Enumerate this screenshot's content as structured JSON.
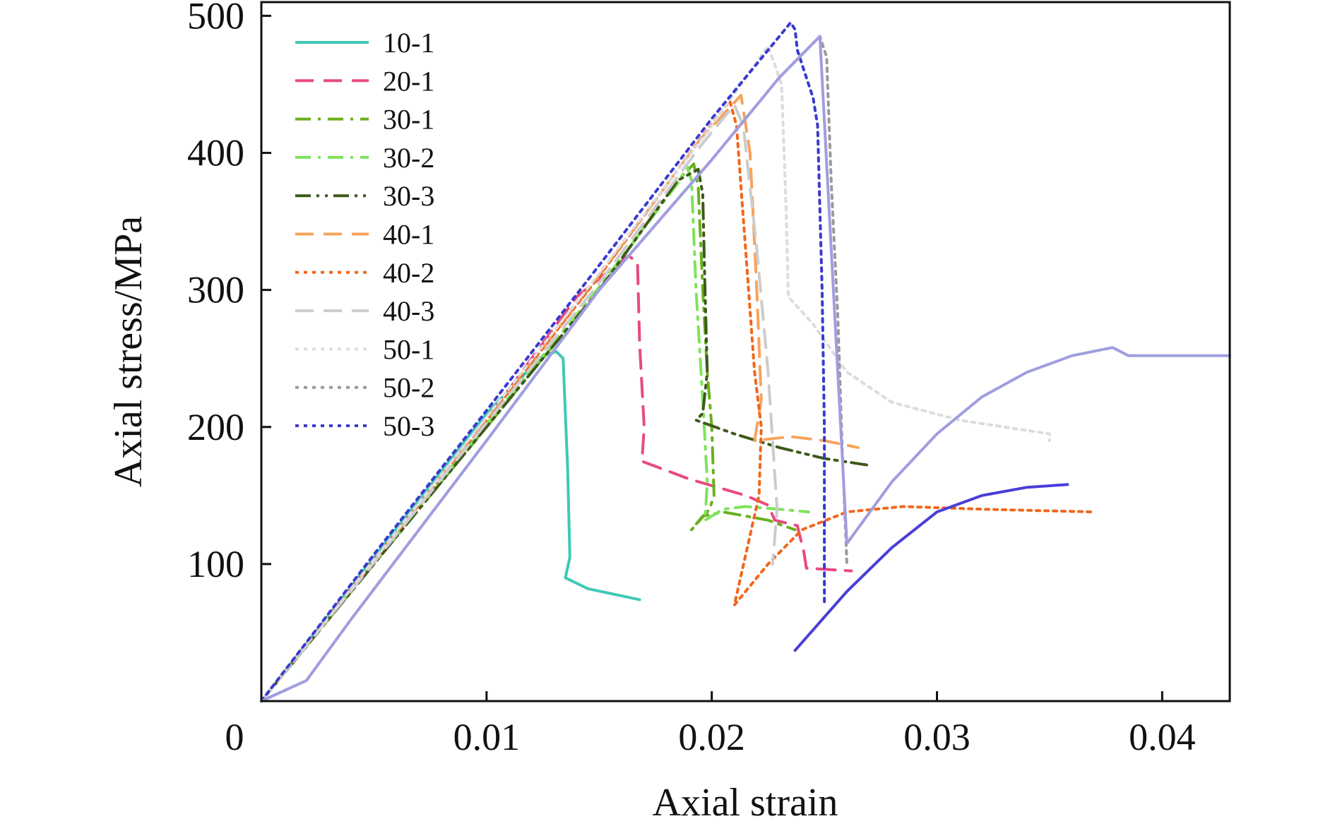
{
  "chart_data": {
    "type": "line",
    "title": "",
    "xlabel": "Axial strain",
    "ylabel": "Axial stress/MPa",
    "xlim": [
      0,
      0.043
    ],
    "ylim": [
      0,
      510
    ],
    "x_ticks": [
      0,
      0.01,
      0.02,
      0.03,
      0.04
    ],
    "x_tick_labels": [
      "0",
      "0.01",
      "0.02",
      "0.03",
      "0.04"
    ],
    "y_ticks": [
      100,
      200,
      300,
      400,
      500
    ],
    "y_tick_labels": [
      "100",
      "200",
      "300",
      "400",
      "500"
    ],
    "grid": false,
    "legend_position": "top-left",
    "series": [
      {
        "name": "10-1",
        "color": "#3fc9b4",
        "dash": "solid",
        "points": [
          [
            0,
            0
          ],
          [
            0.005,
            105
          ],
          [
            0.01,
            210
          ],
          [
            0.0125,
            252
          ],
          [
            0.0131,
            255
          ],
          [
            0.0134,
            250
          ],
          [
            0.0136,
            170
          ],
          [
            0.0137,
            105
          ],
          [
            0.0135,
            90
          ],
          [
            0.0145,
            82
          ],
          [
            0.0168,
            74
          ]
        ]
      },
      {
        "name": "20-1",
        "color": "#e84a7f",
        "dash": "dashed",
        "points": [
          [
            0,
            0
          ],
          [
            0.005,
            103
          ],
          [
            0.01,
            205
          ],
          [
            0.014,
            295
          ],
          [
            0.0163,
            325
          ],
          [
            0.0167,
            320
          ],
          [
            0.0168,
            260
          ],
          [
            0.017,
            200
          ],
          [
            0.0169,
            175
          ],
          [
            0.019,
            162
          ],
          [
            0.0215,
            150
          ],
          [
            0.0225,
            143
          ],
          [
            0.0228,
            132
          ],
          [
            0.0238,
            128
          ],
          [
            0.0241,
            108
          ],
          [
            0.0242,
            97
          ],
          [
            0.0262,
            95
          ]
        ]
      },
      {
        "name": "30-1",
        "color": "#6ab01e",
        "dash": "dashdot",
        "points": [
          [
            0,
            0
          ],
          [
            0.005,
            100
          ],
          [
            0.01,
            200
          ],
          [
            0.015,
            300
          ],
          [
            0.0185,
            380
          ],
          [
            0.0192,
            392
          ],
          [
            0.0194,
            375
          ],
          [
            0.0196,
            300
          ],
          [
            0.0198,
            240
          ],
          [
            0.02,
            200
          ],
          [
            0.0201,
            150
          ],
          [
            0.0199,
            140
          ],
          [
            0.0191,
            125
          ],
          [
            0.0196,
            135
          ],
          [
            0.0205,
            138
          ],
          [
            0.0215,
            135
          ],
          [
            0.0225,
            132
          ],
          [
            0.0237,
            125
          ]
        ]
      },
      {
        "name": "30-2",
        "color": "#7ee35a",
        "dash": "dashdot",
        "points": [
          [
            0,
            0
          ],
          [
            0.005,
            101
          ],
          [
            0.01,
            202
          ],
          [
            0.015,
            302
          ],
          [
            0.0185,
            378
          ],
          [
            0.0189,
            390
          ],
          [
            0.0191,
            380
          ],
          [
            0.0193,
            300
          ],
          [
            0.0196,
            220
          ],
          [
            0.0198,
            160
          ],
          [
            0.0197,
            132
          ],
          [
            0.0205,
            140
          ],
          [
            0.0215,
            142
          ],
          [
            0.023,
            140
          ],
          [
            0.0243,
            138
          ]
        ]
      },
      {
        "name": "30-3",
        "color": "#3d5a1a",
        "dash": "dashdotdot",
        "points": [
          [
            0,
            0
          ],
          [
            0.005,
            100
          ],
          [
            0.01,
            200
          ],
          [
            0.015,
            300
          ],
          [
            0.0185,
            380
          ],
          [
            0.0194,
            388
          ],
          [
            0.0196,
            370
          ],
          [
            0.0197,
            300
          ],
          [
            0.0198,
            240
          ],
          [
            0.0196,
            210
          ],
          [
            0.0193,
            205
          ],
          [
            0.021,
            195
          ],
          [
            0.023,
            185
          ],
          [
            0.025,
            177
          ],
          [
            0.027,
            172
          ]
        ]
      },
      {
        "name": "40-1",
        "color": "#f7a35c",
        "dash": "dashed",
        "points": [
          [
            0,
            0
          ],
          [
            0.005,
            102
          ],
          [
            0.01,
            205
          ],
          [
            0.015,
            310
          ],
          [
            0.0195,
            410
          ],
          [
            0.0213,
            442
          ],
          [
            0.0217,
            400
          ],
          [
            0.022,
            300
          ],
          [
            0.0222,
            220
          ],
          [
            0.0219,
            190
          ],
          [
            0.0235,
            193
          ],
          [
            0.025,
            190
          ],
          [
            0.0265,
            185
          ]
        ]
      },
      {
        "name": "40-2",
        "color": "#f2661c",
        "dash": "dotted",
        "points": [
          [
            0,
            0
          ],
          [
            0.005,
            102
          ],
          [
            0.01,
            205
          ],
          [
            0.015,
            310
          ],
          [
            0.0195,
            410
          ],
          [
            0.0208,
            438
          ],
          [
            0.0211,
            420
          ],
          [
            0.0215,
            330
          ],
          [
            0.0219,
            240
          ],
          [
            0.0222,
            200
          ],
          [
            0.0221,
            150
          ],
          [
            0.021,
            70
          ],
          [
            0.0225,
            100
          ],
          [
            0.024,
            125
          ],
          [
            0.026,
            138
          ],
          [
            0.0285,
            142
          ],
          [
            0.032,
            140
          ],
          [
            0.037,
            138
          ]
        ]
      },
      {
        "name": "40-3",
        "color": "#cccccc",
        "dash": "dashed",
        "points": [
          [
            0,
            0
          ],
          [
            0.005,
            101
          ],
          [
            0.01,
            203
          ],
          [
            0.015,
            305
          ],
          [
            0.0195,
            405
          ],
          [
            0.021,
            435
          ],
          [
            0.0214,
            420
          ],
          [
            0.022,
            330
          ],
          [
            0.0225,
            240
          ],
          [
            0.0229,
            140
          ],
          [
            0.0227,
            100
          ]
        ]
      },
      {
        "name": "50-1",
        "color": "#dcdcdc",
        "dash": "dotted",
        "points": [
          [
            0,
            0
          ],
          [
            0.005,
            103
          ],
          [
            0.01,
            207
          ],
          [
            0.015,
            312
          ],
          [
            0.02,
            420
          ],
          [
            0.0225,
            478
          ],
          [
            0.0231,
            450
          ],
          [
            0.0233,
            360
          ],
          [
            0.0234,
            295
          ],
          [
            0.0245,
            275
          ],
          [
            0.026,
            240
          ],
          [
            0.028,
            218
          ],
          [
            0.031,
            205
          ],
          [
            0.035,
            195
          ],
          [
            0.035,
            190
          ]
        ]
      },
      {
        "name": "50-2",
        "color": "#9a9a9a",
        "dash": "dotted",
        "points": [
          [
            0,
            0
          ],
          [
            0.002,
            15
          ],
          [
            0.004,
            60
          ],
          [
            0.01,
            190
          ],
          [
            0.015,
            300
          ],
          [
            0.02,
            395
          ],
          [
            0.023,
            455
          ],
          [
            0.0248,
            485
          ],
          [
            0.0251,
            470
          ],
          [
            0.0253,
            380
          ],
          [
            0.0256,
            280
          ],
          [
            0.0258,
            180
          ],
          [
            0.026,
            100
          ]
        ]
      },
      {
        "name": "50-3",
        "color": "#3a3ad0",
        "dash": "dotted",
        "points": [
          [
            0,
            0
          ],
          [
            0.005,
            107
          ],
          [
            0.01,
            212
          ],
          [
            0.015,
            318
          ],
          [
            0.02,
            425
          ],
          [
            0.0235,
            495
          ],
          [
            0.0237,
            490
          ],
          [
            0.0238,
            475
          ],
          [
            0.024,
            465
          ],
          [
            0.0245,
            440
          ],
          [
            0.0247,
            420
          ],
          [
            0.0249,
            300
          ],
          [
            0.025,
            200
          ],
          [
            0.025,
            70
          ]
        ]
      },
      {
        "name": "",
        "color": "#a09ee0",
        "dash": "solid",
        "points": [
          [
            0,
            0
          ],
          [
            0.002,
            15
          ],
          [
            0.004,
            60
          ],
          [
            0.01,
            190
          ],
          [
            0.015,
            300
          ],
          [
            0.02,
            395
          ],
          [
            0.023,
            455
          ],
          [
            0.0248,
            485
          ],
          [
            0.026,
            115
          ],
          [
            0.028,
            160
          ],
          [
            0.03,
            195
          ],
          [
            0.032,
            222
          ],
          [
            0.034,
            240
          ],
          [
            0.036,
            252
          ],
          [
            0.0378,
            258
          ],
          [
            0.0385,
            252
          ],
          [
            0.043,
            252
          ]
        ]
      },
      {
        "name": "",
        "color": "#4a3ed8",
        "dash": "solid",
        "points": [
          [
            0.0237,
            37
          ],
          [
            0.026,
            80
          ],
          [
            0.028,
            112
          ],
          [
            0.03,
            138
          ],
          [
            0.032,
            150
          ],
          [
            0.034,
            156
          ],
          [
            0.0358,
            158
          ]
        ]
      }
    ]
  }
}
